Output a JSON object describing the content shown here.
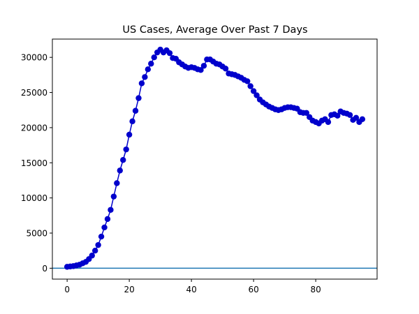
{
  "chart_data": {
    "type": "line",
    "title": "US Cases, Average Over Past 7 Days",
    "xlabel": "",
    "ylabel": "",
    "xlim": [
      -4.75,
      99.75
    ],
    "ylim": [
      -1550,
      32600
    ],
    "x_ticks": [
      0,
      20,
      40,
      60,
      80
    ],
    "y_ticks": [
      0,
      5000,
      10000,
      15000,
      20000,
      25000,
      30000
    ],
    "grid": false,
    "legend": "none",
    "colors": {
      "series": "#0000cc",
      "baseline": "#1f77b4",
      "axes": "#000000"
    },
    "reference_line": {
      "y": 0
    },
    "series": [
      {
        "x": [
          0,
          1,
          2,
          3,
          4,
          5,
          6,
          7,
          8,
          9,
          10,
          11,
          12,
          13,
          14,
          15,
          16,
          17,
          18,
          19,
          20,
          21,
          22,
          23,
          24,
          25,
          26,
          27,
          28,
          29,
          30,
          31,
          32,
          33,
          34,
          35,
          36,
          37,
          38,
          39,
          40,
          41,
          42,
          43,
          44,
          45,
          46,
          47,
          48,
          49,
          50,
          51,
          52,
          53,
          54,
          55,
          56,
          57,
          58,
          59,
          60,
          61,
          62,
          63,
          64,
          65,
          66,
          67,
          68,
          69,
          70,
          71,
          72,
          73,
          74,
          75,
          76,
          77,
          78,
          79,
          80,
          81,
          82,
          83,
          84,
          85,
          86,
          87,
          88,
          89,
          90,
          91,
          92,
          93,
          94,
          95
        ],
        "values": [
          200,
          250,
          300,
          400,
          500,
          700,
          900,
          1300,
          1800,
          2500,
          3300,
          4500,
          5800,
          7000,
          8300,
          10200,
          12100,
          13900,
          15400,
          16900,
          19000,
          20900,
          22400,
          24200,
          26300,
          27200,
          28300,
          29100,
          30000,
          30700,
          31100,
          30700,
          31000,
          30600,
          29900,
          29800,
          29300,
          29000,
          28700,
          28500,
          28600,
          28500,
          28300,
          28200,
          28800,
          29700,
          29700,
          29400,
          29100,
          29000,
          28700,
          28400,
          27700,
          27600,
          27500,
          27300,
          27100,
          26800,
          26600,
          25900,
          25200,
          24600,
          24000,
          23600,
          23300,
          23000,
          22800,
          22600,
          22500,
          22600,
          22800,
          22900,
          22900,
          22800,
          22700,
          22200,
          22100,
          22100,
          21500,
          21000,
          20800,
          20600,
          21000,
          21200,
          20800,
          21800,
          21900,
          21700,
          22300,
          22100,
          22000,
          21800,
          21100,
          21400,
          20800,
          21200
        ]
      }
    ]
  }
}
